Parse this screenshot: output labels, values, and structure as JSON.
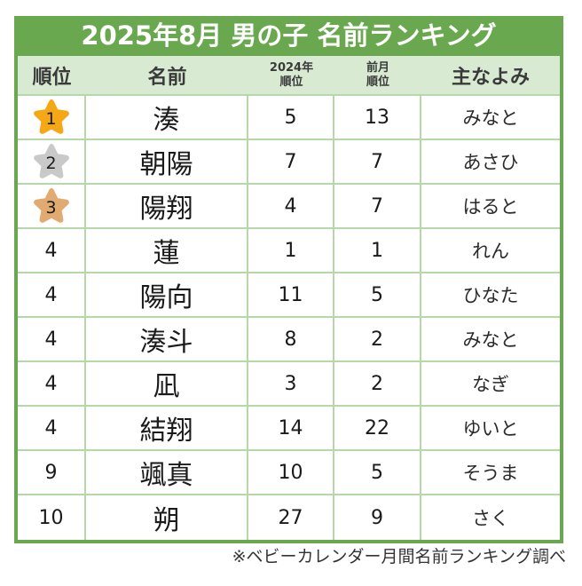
{
  "title": "2025年8月 男の子 名前ランキング",
  "headers": {
    "rank": "順位",
    "name": "名前",
    "rank2024_line1": "2024年",
    "rank2024_line2": "順位",
    "prev_line1": "前月",
    "prev_line2": "順位",
    "yomi": "主なよみ"
  },
  "colors": {
    "title_bg": "#6aa84f",
    "header_bg": "#d9ead3",
    "grid_line": "#b6d7a8",
    "gold": "#f5a815",
    "silver": "#c9c9c9",
    "bronze": "#e0aa70"
  },
  "rows": [
    {
      "rank": "1",
      "name": "湊",
      "rank2024": "5",
      "prev": "13",
      "yomi": "みなと",
      "medal": "gold"
    },
    {
      "rank": "2",
      "name": "朝陽",
      "rank2024": "7",
      "prev": "7",
      "yomi": "あさひ",
      "medal": "silver"
    },
    {
      "rank": "3",
      "name": "陽翔",
      "rank2024": "4",
      "prev": "7",
      "yomi": "はると",
      "medal": "bronze"
    },
    {
      "rank": "4",
      "name": "蓮",
      "rank2024": "1",
      "prev": "1",
      "yomi": "れん"
    },
    {
      "rank": "4",
      "name": "陽向",
      "rank2024": "11",
      "prev": "5",
      "yomi": "ひなた"
    },
    {
      "rank": "4",
      "name": "湊斗",
      "rank2024": "8",
      "prev": "2",
      "yomi": "みなと"
    },
    {
      "rank": "4",
      "name": "凪",
      "rank2024": "3",
      "prev": "2",
      "yomi": "なぎ"
    },
    {
      "rank": "4",
      "name": "結翔",
      "rank2024": "14",
      "prev": "22",
      "yomi": "ゆいと"
    },
    {
      "rank": "9",
      "name": "颯真",
      "rank2024": "10",
      "prev": "5",
      "yomi": "そうま"
    },
    {
      "rank": "10",
      "name": "朔",
      "rank2024": "27",
      "prev": "9",
      "yomi": "さく"
    }
  ],
  "footnote": "※ベビーカレンダー月間名前ランキング調べ"
}
